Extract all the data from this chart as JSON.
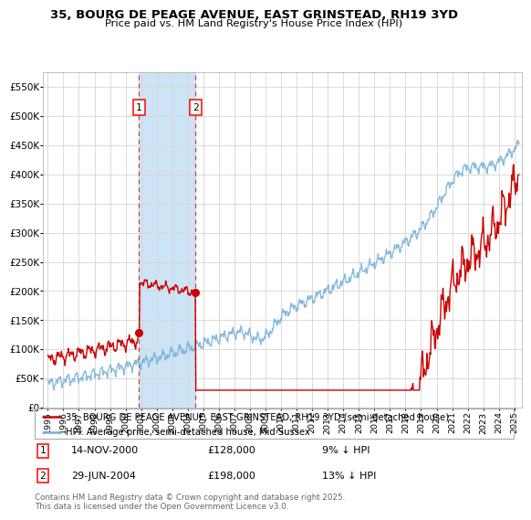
{
  "title": "35, BOURG DE PEAGE AVENUE, EAST GRINSTEAD, RH19 3YD",
  "subtitle": "Price paid vs. HM Land Registry's House Price Index (HPI)",
  "ylim": [
    0,
    575000
  ],
  "yticks": [
    0,
    50000,
    100000,
    150000,
    200000,
    250000,
    300000,
    350000,
    400000,
    450000,
    500000,
    550000
  ],
  "xlim_start": 1994.7,
  "xlim_end": 2025.5,
  "sale1_date": 2000.87,
  "sale1_price": 128000,
  "sale2_date": 2004.49,
  "sale2_price": 198000,
  "legend_red": "35, BOURG DE PEAGE AVENUE, EAST GRINSTEAD, RH19 3YD (semi-detached house)",
  "legend_blue": "HPI: Average price, semi-detached house, Mid Sussex",
  "footnote": "Contains HM Land Registry data © Crown copyright and database right 2025.\nThis data is licensed under the Open Government Licence v3.0.",
  "highlight_color": "#cce4f5",
  "red_line_color": "#cc0000",
  "blue_line_color": "#7ab3d9",
  "dashed_red": "#cc4444",
  "background": "#ffffff"
}
